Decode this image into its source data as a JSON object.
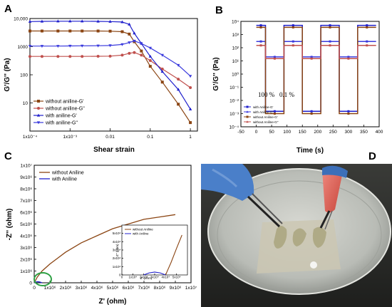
{
  "panels": [
    "A",
    "B",
    "C",
    "D"
  ],
  "chart_data": [
    {
      "panel": "A",
      "type": "line",
      "xscale": "log",
      "yscale": "log",
      "xlabel": "Shear strain",
      "ylabel": "G'/G'' (Pa)",
      "xlim": [
        0.0001,
        1.5
      ],
      "ylim": [
        1,
        10000
      ],
      "xticks": [
        {
          "v": 0.0001,
          "label": "1x10⁻⁴"
        },
        {
          "v": 0.001,
          "label": "1x10⁻³"
        },
        {
          "v": 0.01,
          "label": "0.01"
        },
        {
          "v": 0.1,
          "label": "0.1"
        },
        {
          "v": 1,
          "label": "1"
        }
      ],
      "yticks": [
        {
          "v": 10,
          "label": "10"
        },
        {
          "v": 100,
          "label": "100"
        },
        {
          "v": 1000,
          "label": "1000"
        },
        {
          "v": 10000,
          "label": "10,000"
        }
      ],
      "legend": [
        "without aniline-G'",
        "without aniline-G''",
        "with aniline-G'",
        "with aniline-G''"
      ],
      "series": [
        {
          "name": "without aniline-G'",
          "color": "#8B4513",
          "marker": "square",
          "x": [
            0.0001,
            0.0002,
            0.0005,
            0.001,
            0.002,
            0.005,
            0.01,
            0.02,
            0.03,
            0.04,
            0.06,
            0.1,
            0.2,
            0.5,
            1.0
          ],
          "y": [
            3600,
            3600,
            3600,
            3600,
            3600,
            3600,
            3550,
            3400,
            2800,
            1500,
            700,
            200,
            55,
            9,
            2
          ]
        },
        {
          "name": "without aniline-G''",
          "color": "#C0504D",
          "marker": "circle",
          "x": [
            0.0001,
            0.0002,
            0.0005,
            0.001,
            0.002,
            0.005,
            0.01,
            0.02,
            0.03,
            0.04,
            0.06,
            0.1,
            0.2,
            0.5,
            1.0
          ],
          "y": [
            450,
            450,
            450,
            450,
            450,
            455,
            460,
            500,
            580,
            620,
            500,
            320,
            160,
            70,
            35
          ]
        },
        {
          "name": "with aniline-G'",
          "color": "#1F1FCC",
          "marker": "triangle-up",
          "x": [
            0.0001,
            0.0002,
            0.0005,
            0.001,
            0.002,
            0.005,
            0.01,
            0.02,
            0.03,
            0.04,
            0.06,
            0.1,
            0.2,
            0.5,
            1.0
          ],
          "y": [
            7800,
            7900,
            8000,
            8000,
            8000,
            7900,
            7800,
            7500,
            6200,
            3000,
            1300,
            450,
            130,
            30,
            6
          ]
        },
        {
          "name": "with aniline-G''",
          "color": "#3A3ADD",
          "marker": "triangle-down",
          "x": [
            0.0001,
            0.0002,
            0.0005,
            0.001,
            0.002,
            0.005,
            0.01,
            0.02,
            0.03,
            0.04,
            0.06,
            0.1,
            0.2,
            0.5,
            1.0
          ],
          "y": [
            1050,
            1050,
            1050,
            1060,
            1070,
            1080,
            1100,
            1200,
            1400,
            1600,
            1300,
            900,
            500,
            220,
            90
          ]
        }
      ]
    },
    {
      "panel": "B",
      "type": "line",
      "yscale": "log",
      "xlabel": "Time (s)",
      "ylabel": "G'/G'' (Pa)",
      "xlim": [
        -50,
        400
      ],
      "ylim": [
        0.0001,
        10000
      ],
      "xticks": [
        {
          "v": -50,
          "label": "-50"
        },
        {
          "v": 0,
          "label": "0"
        },
        {
          "v": 50,
          "label": "50"
        },
        {
          "v": 100,
          "label": "100"
        },
        {
          "v": 150,
          "label": "150"
        },
        {
          "v": 200,
          "label": "200"
        },
        {
          "v": 250,
          "label": "250"
        },
        {
          "v": 300,
          "label": "300"
        },
        {
          "v": 350,
          "label": "350"
        },
        {
          "v": 400,
          "label": "400"
        }
      ],
      "yticks": [
        {
          "v": 0.0001,
          "label": "10⁻⁴"
        },
        {
          "v": 0.001,
          "label": "10⁻³"
        },
        {
          "v": 0.01,
          "label": "10⁻²"
        },
        {
          "v": 0.1,
          "label": "10⁻¹"
        },
        {
          "v": 1,
          "label": "10⁰"
        },
        {
          "v": 10,
          "label": "10¹"
        },
        {
          "v": 100,
          "label": "10²"
        },
        {
          "v": 1000,
          "label": "10³"
        },
        {
          "v": 10000,
          "label": "10⁴"
        }
      ],
      "annotations": [
        "100 %",
        "0.1 %"
      ],
      "legend": [
        "with Aniline-G'",
        "with Aniline-G''",
        "without Aniline-G'",
        "without Aniline-G''"
      ],
      "segments": [
        [
          0,
          30,
          "low"
        ],
        [
          30,
          90,
          "high"
        ],
        [
          90,
          150,
          "low"
        ],
        [
          150,
          210,
          "high"
        ],
        [
          210,
          270,
          "low"
        ],
        [
          270,
          330,
          "high"
        ],
        [
          330,
          390,
          "low"
        ]
      ],
      "series": [
        {
          "name": "with Aniline-G'",
          "color": "#1F1FCC",
          "high_strain_value": 0.0015,
          "low_strain_value": 5000
        },
        {
          "name": "with Aniline-G''",
          "color": "#3A3ADD",
          "high_strain_value": 20,
          "low_strain_value": 300
        },
        {
          "name": "without Aniline-G'",
          "color": "#8B4513",
          "high_strain_value": 0.001,
          "low_strain_value": 3500
        },
        {
          "name": "without Aniline-G''",
          "color": "#C0504D",
          "high_strain_value": 15,
          "low_strain_value": 150
        }
      ]
    },
    {
      "panel": "C",
      "type": "line",
      "xlabel": "Z' (ohm)",
      "ylabel": "-Z'' (ohm)",
      "xlim": [
        0,
        10000000
      ],
      "ylim": [
        0,
        10000000
      ],
      "xticks": [
        {
          "v": 0,
          "label": "0"
        },
        {
          "v": 1000000,
          "label": "1x10⁶"
        },
        {
          "v": 2000000,
          "label": "2x10⁶"
        },
        {
          "v": 3000000,
          "label": "3x10⁶"
        },
        {
          "v": 4000000,
          "label": "4x10⁶"
        },
        {
          "v": 5000000,
          "label": "5x10⁶"
        },
        {
          "v": 6000000,
          "label": "6x10⁶"
        },
        {
          "v": 7000000,
          "label": "7x10⁶"
        },
        {
          "v": 8000000,
          "label": "8x10⁶"
        },
        {
          "v": 9000000,
          "label": "9x10⁶"
        },
        {
          "v": 10000000,
          "label": "1x10⁷"
        }
      ],
      "yticks": [
        {
          "v": 0,
          "label": "0"
        },
        {
          "v": 1000000,
          "label": "1x10⁶"
        },
        {
          "v": 2000000,
          "label": "2x10⁶"
        },
        {
          "v": 3000000,
          "label": "3x10⁶"
        },
        {
          "v": 4000000,
          "label": "4x10⁶"
        },
        {
          "v": 5000000,
          "label": "5x10⁶"
        },
        {
          "v": 6000000,
          "label": "6x10⁶"
        },
        {
          "v": 7000000,
          "label": "7x10⁶"
        },
        {
          "v": 8000000,
          "label": "8x10⁶"
        },
        {
          "v": 9000000,
          "label": "9x10⁶"
        },
        {
          "v": 10000000,
          "label": "1x10⁷"
        }
      ],
      "legend": [
        "without Aniline",
        "with Aniline"
      ],
      "series": [
        {
          "name": "without Aniline",
          "color": "#8B4513",
          "x": [
            0,
            200000,
            500000,
            1000000,
            1500000,
            2000000,
            3000000,
            4000000,
            5000000,
            6000000,
            7000000,
            8000000,
            9000000
          ],
          "y": [
            0,
            500000,
            1000000,
            1600000,
            2100000,
            2600000,
            3400000,
            4000000,
            4600000,
            5000000,
            5400000,
            5600000,
            5800000
          ]
        },
        {
          "name": "with Aniline",
          "color": "#1F1FCC",
          "x": [
            0,
            100000,
            200000,
            300000,
            400000,
            500000
          ],
          "y": [
            0,
            60000,
            90000,
            80000,
            40000,
            0
          ]
        }
      ],
      "inset": {
        "xlabel": "Z' (ohm)",
        "ylabel": "-Z'' (ohm)",
        "xlim": [
          0,
          60000
        ],
        "ylim": [
          0,
          60000
        ],
        "legend": [
          "without Aniline",
          "with Aniline"
        ],
        "xticks": [
          {
            "v": 0,
            "label": "0"
          },
          {
            "v": 10000,
            "label": "1x10⁴"
          },
          {
            "v": 20000,
            "label": "2x10⁴"
          },
          {
            "v": 30000,
            "label": "3x10⁴"
          },
          {
            "v": 40000,
            "label": "4x10⁴"
          },
          {
            "v": 50000,
            "label": "5x10⁴"
          }
        ],
        "yticks": [
          {
            "v": 0,
            "label": "0"
          },
          {
            "v": 10000,
            "label": "1x10⁴"
          },
          {
            "v": 20000,
            "label": "2x10⁴"
          },
          {
            "v": 30000,
            "label": "3x10⁴"
          },
          {
            "v": 40000,
            "label": "4x10⁴"
          },
          {
            "v": 50000,
            "label": "5x10⁴"
          }
        ],
        "series": [
          {
            "name": "without Aniline",
            "color": "#8B4513",
            "x": [
              40000,
              45000,
              50000,
              55000
            ],
            "y": [
              0,
              15000,
              32000,
              48000
            ]
          },
          {
            "name": "with Aniline",
            "color": "#1F1FCC",
            "x": [
              20000,
              25000,
              30000,
              35000,
              40000
            ],
            "y": [
              0,
              2500,
              3500,
              2500,
              0
            ]
          }
        ]
      }
    }
  ]
}
